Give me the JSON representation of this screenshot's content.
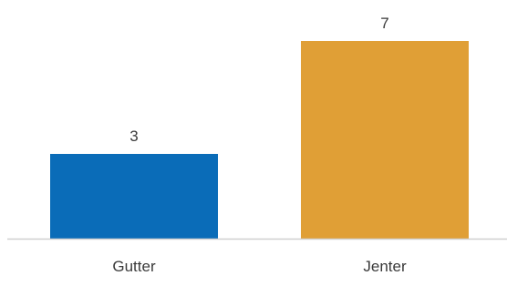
{
  "chart_data": {
    "type": "bar",
    "title": "",
    "xlabel": "",
    "ylabel": "",
    "categories": [
      "Gutter",
      "Jenter"
    ],
    "values": [
      3,
      7
    ],
    "data_labels": [
      "3",
      "7"
    ],
    "colors": [
      "#0A6CB8",
      "#E09F36"
    ],
    "ylim": [
      0,
      7
    ],
    "grid": false,
    "legend": "none"
  }
}
